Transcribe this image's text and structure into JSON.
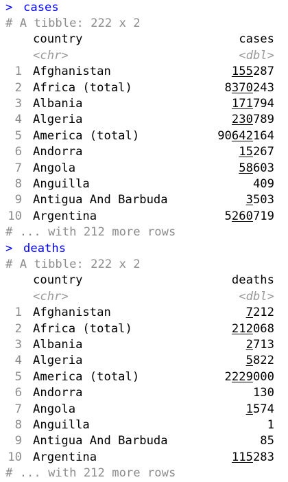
{
  "console": {
    "blocks": [
      {
        "prompt": ">",
        "command": "cases",
        "tibble_header": "# A tibble: 222 x 2",
        "columns": [
          "country",
          "cases"
        ],
        "types": [
          "<chr>",
          "<dbl>"
        ],
        "rows": [
          {
            "n": "1",
            "country": "Afghanistan",
            "value": "155287",
            "value_plain": "",
            "value_underlined": "155",
            "value_rest": "287"
          },
          {
            "n": "2",
            "country": "Africa (total)",
            "value": "8370243",
            "value_plain": "8",
            "value_underlined": "370",
            "value_rest": "243"
          },
          {
            "n": "3",
            "country": "Albania",
            "value": "171794",
            "value_plain": "",
            "value_underlined": "171",
            "value_rest": "794"
          },
          {
            "n": "4",
            "country": "Algeria",
            "value": "230789",
            "value_plain": "",
            "value_underlined": "230",
            "value_rest": "789"
          },
          {
            "n": "5",
            "country": "America (total)",
            "value": "90642164",
            "value_plain": "90",
            "value_underlined": "642",
            "value_rest": "164"
          },
          {
            "n": "6",
            "country": "Andorra",
            "value": "15267",
            "value_plain": "",
            "value_underlined": "15",
            "value_rest": "267"
          },
          {
            "n": "7",
            "country": "Angola",
            "value": "58603",
            "value_plain": "",
            "value_underlined": "58",
            "value_rest": "603"
          },
          {
            "n": "8",
            "country": "Anguilla",
            "value": "409",
            "value_plain": "409",
            "value_underlined": "",
            "value_rest": ""
          },
          {
            "n": "9",
            "country": "Antigua And Barbuda",
            "value": "3503",
            "value_plain": "",
            "value_underlined": "3",
            "value_rest": "503"
          },
          {
            "n": "10",
            "country": "Argentina",
            "value": "5260719",
            "value_plain": "5",
            "value_underlined": "260",
            "value_rest": "719"
          }
        ],
        "more_rows": "# ... with 212 more rows"
      },
      {
        "prompt": ">",
        "command": "deaths",
        "tibble_header": "# A tibble: 222 x 2",
        "columns": [
          "country",
          "deaths"
        ],
        "types": [
          "<chr>",
          "<dbl>"
        ],
        "rows": [
          {
            "n": "1",
            "country": "Afghanistan",
            "value": "7212",
            "value_plain": "",
            "value_underlined": "7",
            "value_rest": "212"
          },
          {
            "n": "2",
            "country": "Africa (total)",
            "value": "212068",
            "value_plain": "",
            "value_underlined": "212",
            "value_rest": "068"
          },
          {
            "n": "3",
            "country": "Albania",
            "value": "2713",
            "value_plain": "",
            "value_underlined": "2",
            "value_rest": "713"
          },
          {
            "n": "4",
            "country": "Algeria",
            "value": "5822",
            "value_plain": "",
            "value_underlined": "5",
            "value_rest": "822"
          },
          {
            "n": "5",
            "country": "America (total)",
            "value": "2229000",
            "value_plain": "2",
            "value_underlined": "229",
            "value_rest": "000"
          },
          {
            "n": "6",
            "country": "Andorra",
            "value": "130",
            "value_plain": "130",
            "value_underlined": "",
            "value_rest": ""
          },
          {
            "n": "7",
            "country": "Angola",
            "value": "1574",
            "value_plain": "",
            "value_underlined": "1",
            "value_rest": "574"
          },
          {
            "n": "8",
            "country": "Anguilla",
            "value": "1",
            "value_plain": "1",
            "value_underlined": "",
            "value_rest": ""
          },
          {
            "n": "9",
            "country": "Antigua And Barbuda",
            "value": "85",
            "value_plain": "85",
            "value_underlined": "",
            "value_rest": ""
          },
          {
            "n": "10",
            "country": "Argentina",
            "value": "115283",
            "value_plain": "",
            "value_underlined": "115",
            "value_rest": "283"
          }
        ],
        "more_rows": "# ... with 212 more rows"
      }
    ],
    "colors": {
      "command": "#0000ff",
      "comment": "#8c8c8c",
      "type": "#9a9a9a",
      "text": "#000000",
      "background": "#ffffff"
    }
  }
}
